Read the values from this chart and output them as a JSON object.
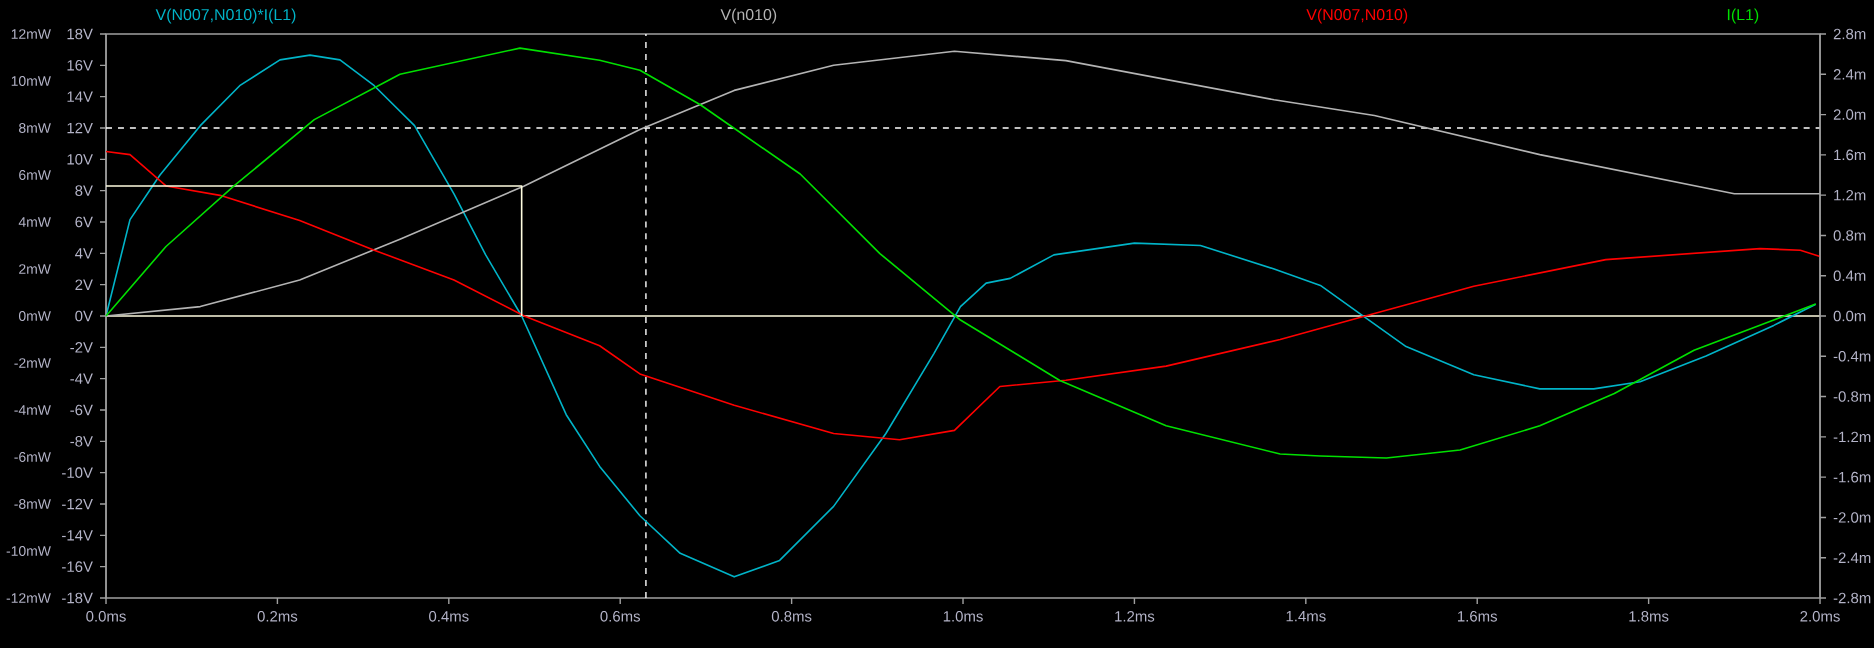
{
  "chart_data": {
    "type": "line",
    "legend": "top",
    "xlim": [
      0,
      2
    ],
    "xticks": [
      {
        "value": 0,
        "label": "0.0ms"
      },
      {
        "value": 0.2,
        "label": "0.2ms"
      },
      {
        "value": 0.4,
        "label": "0.4ms"
      },
      {
        "value": 0.6,
        "label": "0.6ms"
      },
      {
        "value": 0.8,
        "label": "0.8ms"
      },
      {
        "value": 1.0,
        "label": "1.0ms"
      },
      {
        "value": 1.2,
        "label": "1.2ms"
      },
      {
        "value": 1.4,
        "label": "1.4ms"
      },
      {
        "value": 1.6,
        "label": "1.6ms"
      },
      {
        "value": 1.8,
        "label": "1.8ms"
      },
      {
        "value": 2.0,
        "label": "2.0ms"
      }
    ],
    "ylim": [
      -12,
      12
    ],
    "yticks": [
      {
        "value": -12,
        "label": "-12mW"
      },
      {
        "value": -10,
        "label": "-10mW"
      },
      {
        "value": -8,
        "label": "-8mW"
      },
      {
        "value": -6,
        "label": "-6mW"
      },
      {
        "value": -4,
        "label": "-4mW"
      },
      {
        "value": -2,
        "label": "-2mW"
      },
      {
        "value": 0,
        "label": "0mW"
      },
      {
        "value": 2,
        "label": "2mW"
      },
      {
        "value": 4,
        "label": "4mW"
      },
      {
        "value": 6,
        "label": "6mW"
      },
      {
        "value": 8,
        "label": "8mW"
      },
      {
        "value": 10,
        "label": "10mW"
      },
      {
        "value": 12,
        "label": "12mW"
      }
    ],
    "y2lim": [
      -18,
      18
    ],
    "y2ticks": [
      {
        "value": -18,
        "label": "-18V"
      },
      {
        "value": -16,
        "label": "-16V"
      },
      {
        "value": -14,
        "label": "-14V"
      },
      {
        "value": -12,
        "label": "-12V"
      },
      {
        "value": -10,
        "label": "-10V"
      },
      {
        "value": -8,
        "label": "-8V"
      },
      {
        "value": -6,
        "label": "-6V"
      },
      {
        "value": -4,
        "label": "-4V"
      },
      {
        "value": -2,
        "label": "-2V"
      },
      {
        "value": 0,
        "label": "0V"
      },
      {
        "value": 2,
        "label": "2V"
      },
      {
        "value": 4,
        "label": "4V"
      },
      {
        "value": 6,
        "label": "6V"
      },
      {
        "value": 8,
        "label": "8V"
      },
      {
        "value": 10,
        "label": "10V"
      },
      {
        "value": 12,
        "label": "12V"
      },
      {
        "value": 14,
        "label": "14V"
      },
      {
        "value": 16,
        "label": "16V"
      },
      {
        "value": 18,
        "label": "18V"
      }
    ],
    "y3lim": [
      -2.8,
      2.8
    ],
    "y3ticks": [
      {
        "value": -2.8,
        "label": "-2.8m"
      },
      {
        "value": -2.4,
        "label": "-2.4m"
      },
      {
        "value": -2.0,
        "label": "-2.0m"
      },
      {
        "value": -1.6,
        "label": "-1.6m"
      },
      {
        "value": -1.2,
        "label": "-1.2m"
      },
      {
        "value": -0.8,
        "label": "-0.8m"
      },
      {
        "value": -0.4,
        "label": "-0.4m"
      },
      {
        "value": 0,
        "label": "0.0m"
      },
      {
        "value": 0.4,
        "label": "0.4m"
      },
      {
        "value": 0.8,
        "label": "0.8m"
      },
      {
        "value": 1.2,
        "label": "1.2m"
      },
      {
        "value": 1.6,
        "label": "1.6m"
      },
      {
        "value": 2.0,
        "label": "2.0m"
      },
      {
        "value": 2.4,
        "label": "2.4m"
      },
      {
        "value": 2.8,
        "label": "2.8m"
      }
    ],
    "series": [
      {
        "name": "V(N007,N010)*I(L1)",
        "color": "#00b4c8",
        "axis": "y",
        "x": [
          0,
          0.028,
          0.063,
          0.11,
          0.156,
          0.203,
          0.238,
          0.273,
          0.313,
          0.36,
          0.406,
          0.443,
          0.485,
          0.537,
          0.576,
          0.623,
          0.67,
          0.733,
          0.786,
          0.849,
          0.91,
          0.966,
          0.997,
          1.027,
          1.055,
          1.106,
          1.2,
          1.277,
          1.363,
          1.417,
          1.463,
          1.517,
          1.596,
          1.673,
          1.736,
          1.79,
          1.867,
          1.946,
          1.995
        ],
        "values": [
          0,
          4.1,
          6.0,
          8.1,
          9.8,
          10.9,
          11.1,
          10.9,
          9.8,
          8.1,
          5.2,
          2.6,
          0,
          -4.2,
          -6.4,
          -8.5,
          -10.1,
          -11.1,
          -10.4,
          -8.1,
          -5.0,
          -1.6,
          0.4,
          1.4,
          1.6,
          2.6,
          3.1,
          3.0,
          2.0,
          1.3,
          0.1,
          -1.3,
          -2.5,
          -3.1,
          -3.1,
          -2.8,
          -1.7,
          -0.4,
          0.5
        ]
      },
      {
        "name": "V(n010)",
        "color": "#b4b4b4",
        "axis": "y2",
        "x": [
          0,
          0.11,
          0.226,
          0.343,
          0.488,
          0.623,
          0.733,
          0.849,
          0.99,
          1.12,
          1.363,
          1.48,
          1.673,
          1.9,
          2.0
        ],
        "values": [
          0,
          0.6,
          2.3,
          4.9,
          8.3,
          11.9,
          14.4,
          16.0,
          16.9,
          16.3,
          13.8,
          12.8,
          10.3,
          7.8,
          7.8
        ]
      },
      {
        "name": "V(N007,N010)",
        "color": "#ff0000",
        "axis": "y2",
        "x": [
          0,
          0.028,
          0.07,
          0.133,
          0.226,
          0.313,
          0.406,
          0.488,
          0.576,
          0.623,
          0.733,
          0.849,
          0.926,
          0.99,
          1.043,
          1.12,
          1.237,
          1.37,
          1.463,
          1.596,
          1.75,
          1.93,
          1.977,
          2.0
        ],
        "values": [
          10.5,
          10.3,
          8.3,
          7.7,
          6.1,
          4.2,
          2.3,
          0,
          -1.9,
          -3.7,
          -5.7,
          -7.5,
          -7.9,
          -7.3,
          -4.5,
          -4.1,
          -3.2,
          -1.5,
          -0.1,
          1.9,
          3.6,
          4.3,
          4.2,
          3.8
        ]
      },
      {
        "name": "I(L1)",
        "color": "#00e000",
        "axis": "y3",
        "x": [
          0,
          0.07,
          0.149,
          0.243,
          0.343,
          0.483,
          0.576,
          0.623,
          0.693,
          0.81,
          0.903,
          0.997,
          1.113,
          1.237,
          1.37,
          1.417,
          1.494,
          1.58,
          1.673,
          1.76,
          1.853,
          1.946,
          1.995
        ],
        "values": [
          0,
          0.69,
          1.29,
          1.95,
          2.4,
          2.66,
          2.54,
          2.44,
          2.1,
          1.41,
          0.62,
          -0.04,
          -0.64,
          -1.09,
          -1.37,
          -1.39,
          -1.41,
          -1.33,
          -1.09,
          -0.77,
          -0.34,
          -0.04,
          0.12
        ]
      },
      {
        "color": "#fffde0",
        "axis": "y2",
        "x": [
          0,
          0.485,
          0.485
        ],
        "values": [
          8.3,
          8.3,
          0
        ]
      }
    ],
    "ref_lines": [
      {
        "axis": "x",
        "value": 0.63,
        "color": "#ffffff",
        "line_style": "dashed"
      },
      {
        "axis": "y2",
        "value": 12,
        "color": "#ffffff",
        "line_style": "dashed"
      },
      {
        "axis": "y",
        "value": 0,
        "color": "#fffde0",
        "line_style": "solid"
      }
    ]
  }
}
